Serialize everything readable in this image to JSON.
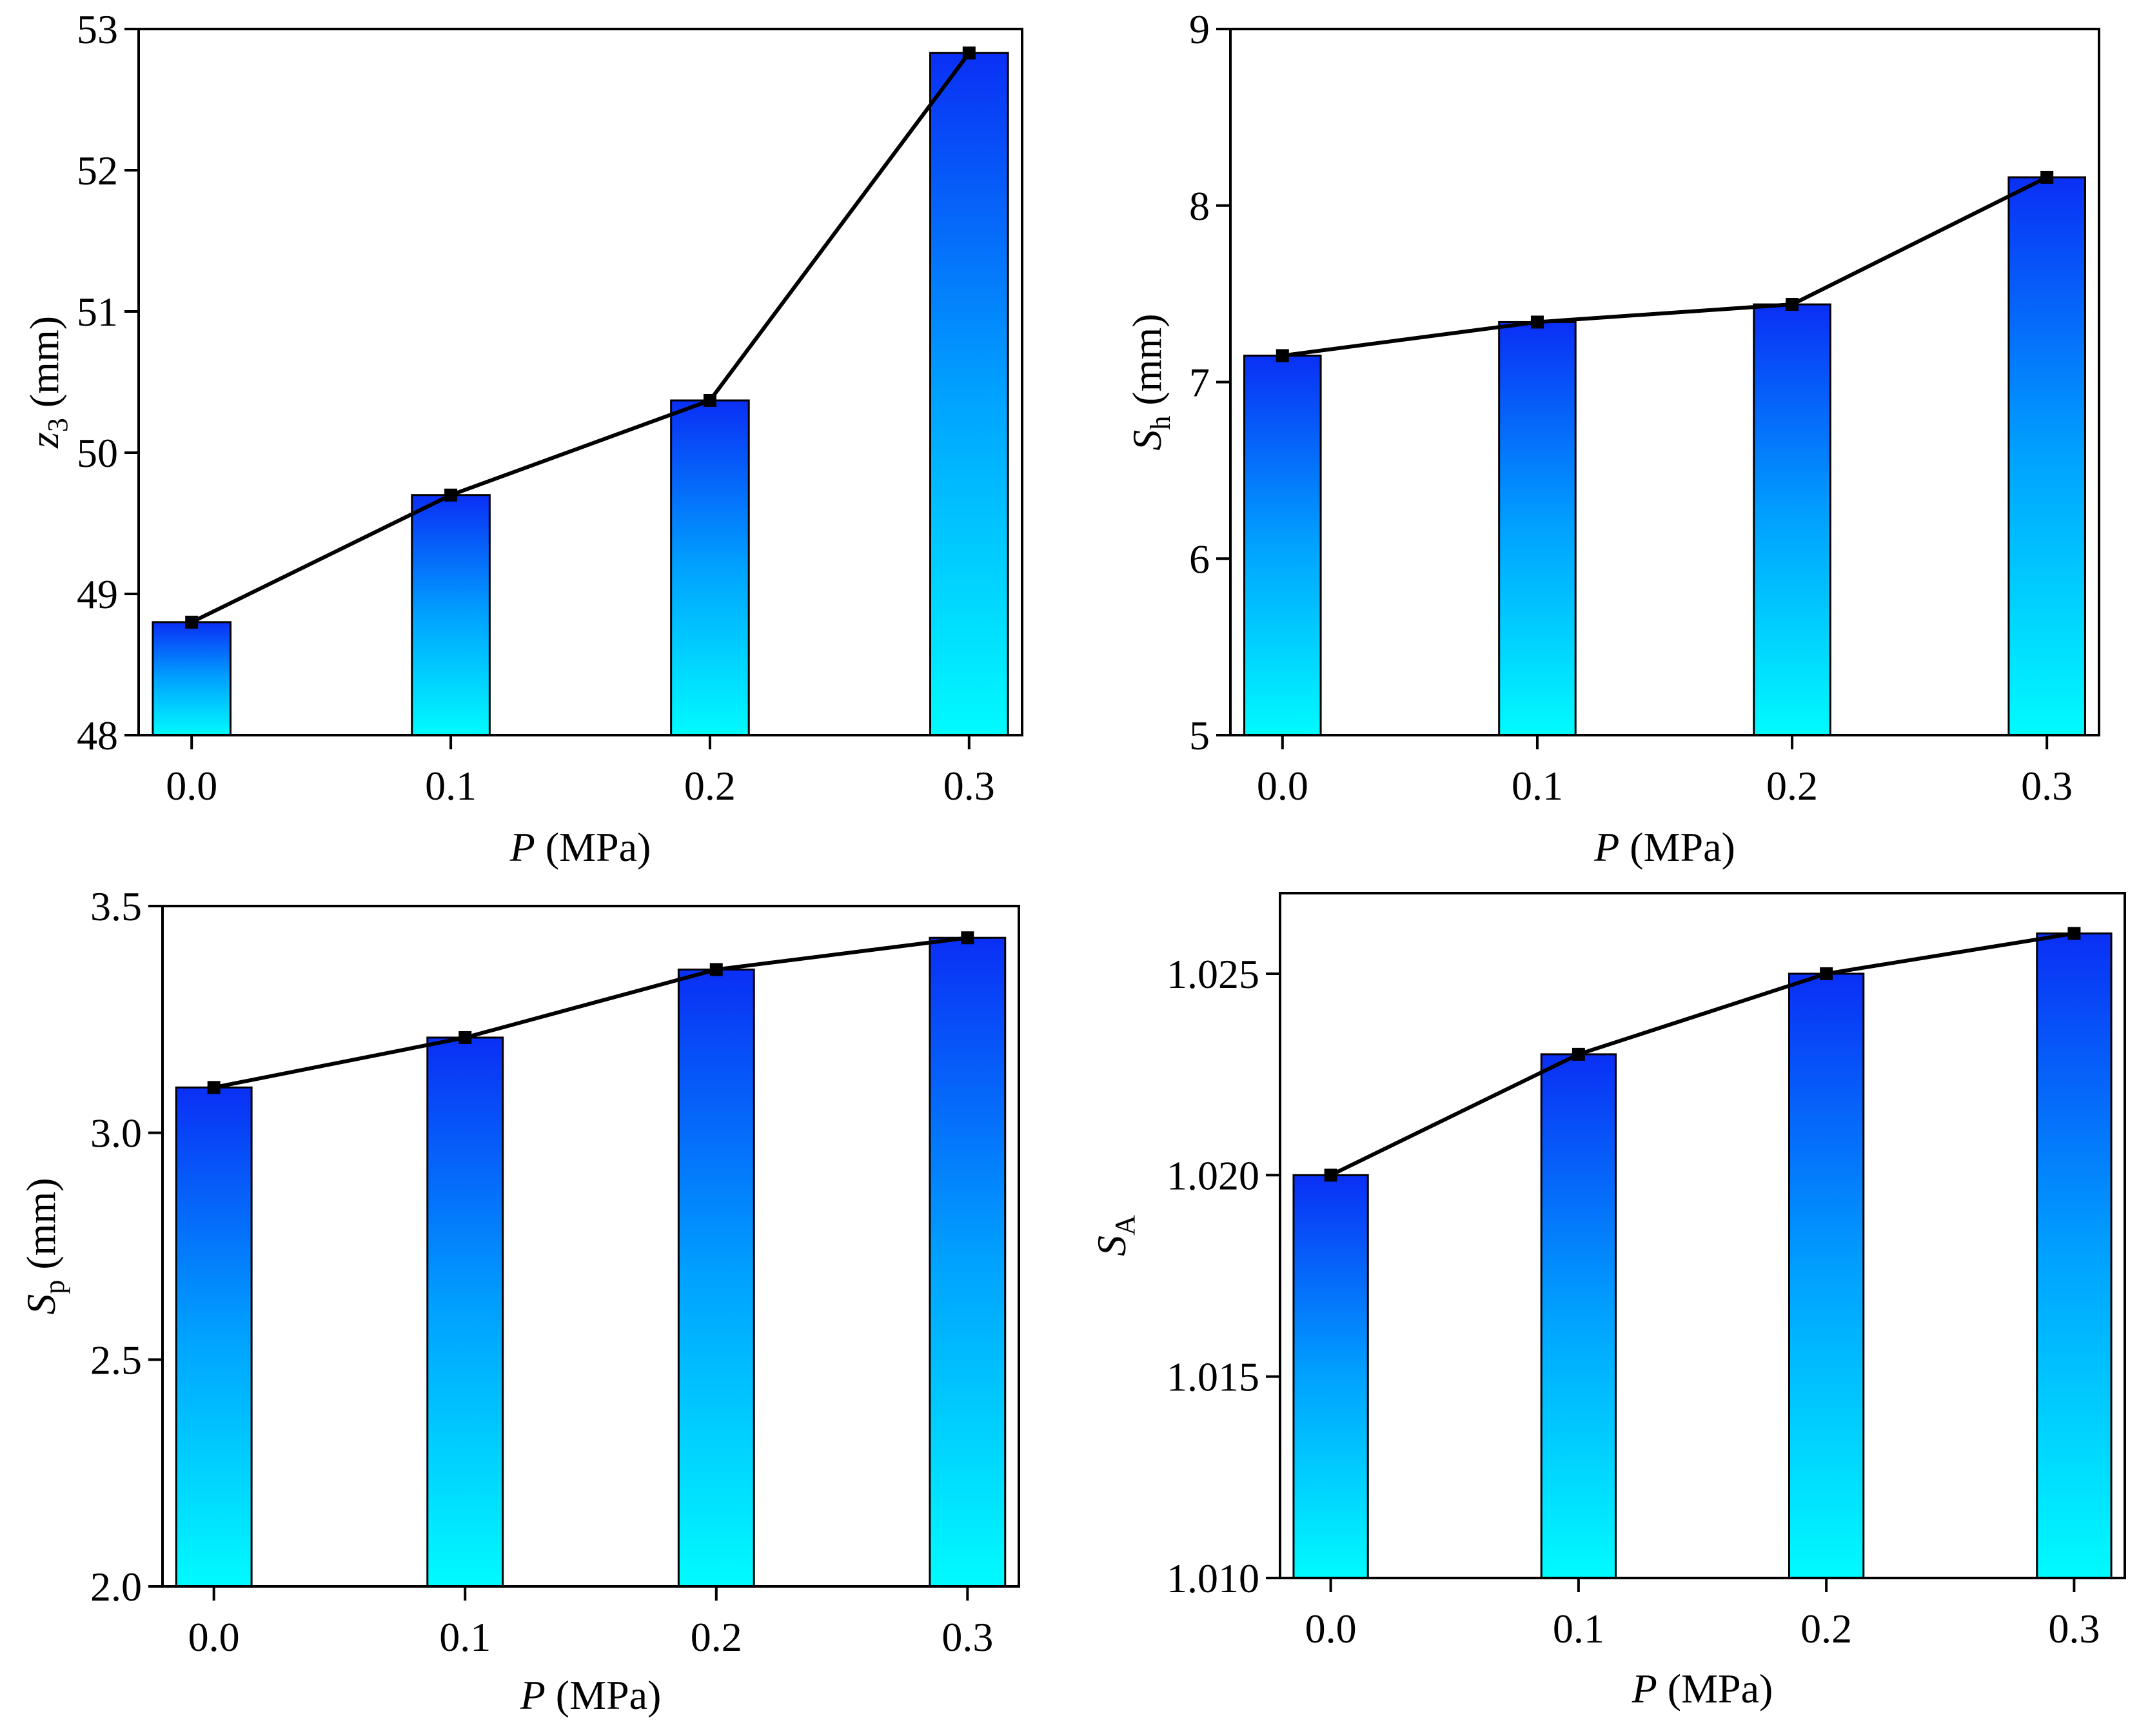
{
  "colors": {
    "bar_top": "#0a2ff5",
    "bar_mid": "#00a2ff",
    "bar_bottom": "#00fbff",
    "line": "#000000"
  },
  "chart_data": [
    {
      "id": "z3",
      "type": "bar",
      "xlabel_var": "P",
      "xlabel_unit": "(MPa)",
      "ylabel_var": "z",
      "ylabel_sub": "3",
      "ylabel_unit": "(mm)",
      "categories": [
        "0.0",
        "0.1",
        "0.2",
        "0.3"
      ],
      "values": [
        48.8,
        49.7,
        50.37,
        52.83
      ],
      "ylim": [
        48,
        53
      ],
      "yticks": [
        48,
        49,
        50,
        51,
        52,
        53
      ],
      "ytick_labels": [
        "48",
        "49",
        "50",
        "51",
        "52",
        "53"
      ],
      "overlay": "line-with-square-markers"
    },
    {
      "id": "Sh",
      "type": "bar",
      "xlabel_var": "P",
      "xlabel_unit": "(MPa)",
      "ylabel_var": "S",
      "ylabel_sub": "h",
      "ylabel_unit": "(mm)",
      "categories": [
        "0.0",
        "0.1",
        "0.2",
        "0.3"
      ],
      "values": [
        7.15,
        7.34,
        7.44,
        8.16
      ],
      "ylim": [
        5,
        9
      ],
      "yticks": [
        5,
        6,
        7,
        8,
        9
      ],
      "ytick_labels": [
        "5",
        "6",
        "7",
        "8",
        "9"
      ],
      "overlay": "line-with-square-markers"
    },
    {
      "id": "Sp",
      "type": "bar",
      "xlabel_var": "P",
      "xlabel_unit": "(MPa)",
      "ylabel_var": "S",
      "ylabel_sub": "p",
      "ylabel_unit": "(mm)",
      "categories": [
        "0.0",
        "0.1",
        "0.2",
        "0.3"
      ],
      "values": [
        3.1,
        3.21,
        3.36,
        3.43
      ],
      "ylim": [
        2.0,
        3.5
      ],
      "yticks": [
        2.0,
        2.5,
        3.0,
        3.5
      ],
      "ytick_labels": [
        "2.0",
        "2.5",
        "3.0",
        "3.5"
      ],
      "overlay": "line-with-square-markers"
    },
    {
      "id": "SA",
      "type": "bar",
      "xlabel_var": "P",
      "xlabel_unit": "(MPa)",
      "ylabel_var": "S",
      "ylabel_sub": "A",
      "ylabel_unit": "",
      "categories": [
        "0.0",
        "0.1",
        "0.2",
        "0.3"
      ],
      "values": [
        1.02,
        1.023,
        1.025,
        1.026
      ],
      "ylim": [
        1.01,
        1.027
      ],
      "yticks": [
        1.01,
        1.015,
        1.02,
        1.025
      ],
      "ytick_labels": [
        "1.010",
        "1.015",
        "1.020",
        "1.025"
      ],
      "overlay": "line-with-square-markers"
    }
  ]
}
